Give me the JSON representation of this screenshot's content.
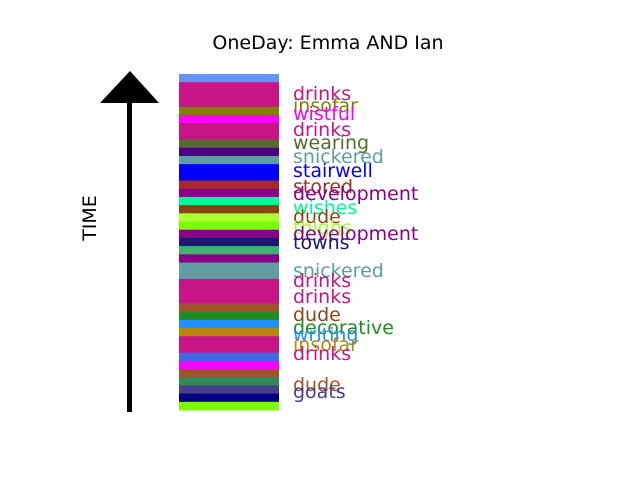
{
  "chart_data": {
    "type": "bar",
    "orientation": "stacked-vertical-strip",
    "title": "OneDay: Emma AND Ian",
    "ylabel": "TIME",
    "direction": "time increases upward",
    "stripes": [
      {
        "color": "#6495ED"
      },
      {
        "color": "#C71585"
      },
      {
        "color": "#C71585"
      },
      {
        "color": "#C71585"
      },
      {
        "color": "#808000"
      },
      {
        "color": "#FF00FF"
      },
      {
        "color": "#C71585"
      },
      {
        "color": "#C71585"
      },
      {
        "color": "#556B2F"
      },
      {
        "color": "#4B0082"
      },
      {
        "color": "#5F9EA0"
      },
      {
        "color": "#0000FF"
      },
      {
        "color": "#0000FF"
      },
      {
        "color": "#A52A2A"
      },
      {
        "color": "#8B008B"
      },
      {
        "color": "#00FA9A"
      },
      {
        "color": "#8B4513"
      },
      {
        "color": "#ADFF2F"
      },
      {
        "color": "#7CFC00"
      },
      {
        "color": "#8B008B"
      },
      {
        "color": "#191970"
      },
      {
        "color": "#3CB371"
      },
      {
        "color": "#8B008B"
      },
      {
        "color": "#5F9EA0"
      },
      {
        "color": "#5F9EA0"
      },
      {
        "color": "#C71585"
      },
      {
        "color": "#C71585"
      },
      {
        "color": "#C71585"
      },
      {
        "color": "#A0522D"
      },
      {
        "color": "#228B22"
      },
      {
        "color": "#1E90FF"
      },
      {
        "color": "#B8860B"
      },
      {
        "color": "#C71585"
      },
      {
        "color": "#C71585"
      },
      {
        "color": "#4169E1"
      },
      {
        "color": "#FF00FF"
      },
      {
        "color": "#A0522D"
      },
      {
        "color": "#2E8B57"
      },
      {
        "color": "#483D8B"
      },
      {
        "color": "#000080"
      },
      {
        "color": "#7CFC00"
      }
    ],
    "words": [
      {
        "text": "drinks",
        "color": "#C71585"
      },
      {
        "text": "insofar",
        "color": "#808000"
      },
      {
        "text": "wistful",
        "color": "#FF00FF"
      },
      {
        "text": "drinks",
        "color": "#C71585"
      },
      {
        "text": "wearing",
        "color": "#556B2F"
      },
      {
        "text": "snickered",
        "color": "#5F9EA0"
      },
      {
        "text": "stairwell",
        "color": "#0000FF"
      },
      {
        "text": "stored",
        "color": "#A52A2A"
      },
      {
        "text": "development",
        "color": "#8B008B"
      },
      {
        "text": "wishes",
        "color": "#00FA9A"
      },
      {
        "text": "dude",
        "color": "#8B4513"
      },
      {
        "text": "thighs",
        "color": "#ADFF2F"
      },
      {
        "text": "development",
        "color": "#8B008B"
      },
      {
        "text": "towns",
        "color": "#191970"
      },
      {
        "text": "snickered",
        "color": "#5F9EA0"
      },
      {
        "text": "drinks",
        "color": "#C71585"
      },
      {
        "text": "drinks",
        "color": "#C71585"
      },
      {
        "text": "dude",
        "color": "#8B4513"
      },
      {
        "text": "decorative",
        "color": "#228B22"
      },
      {
        "text": "writing",
        "color": "#1E90FF"
      },
      {
        "text": "insofar",
        "color": "#B8860B"
      },
      {
        "text": "drinks",
        "color": "#C71585"
      },
      {
        "text": "dude",
        "color": "#A0522D"
      },
      {
        "text": "goats",
        "color": "#483D8B"
      }
    ]
  }
}
